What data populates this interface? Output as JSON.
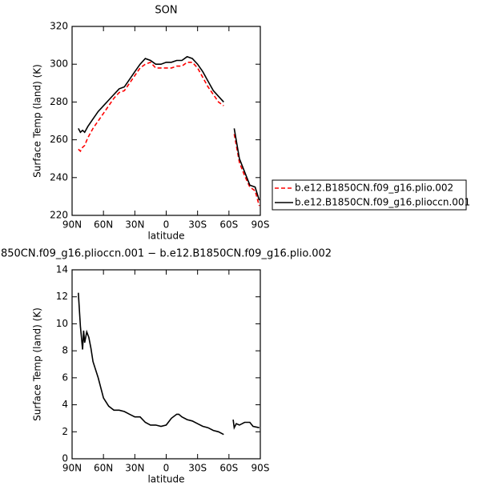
{
  "chart_data": [
    {
      "type": "line",
      "title": "SON",
      "xlabel": "latitude",
      "ylabel": "Surface Temp (land) (K)",
      "x": [
        84,
        82,
        80,
        78,
        75,
        70,
        65,
        60,
        55,
        50,
        45,
        40,
        35,
        30,
        25,
        20,
        15,
        10,
        5,
        0,
        -5,
        -10,
        -15,
        -20,
        -25,
        -30,
        -35,
        -40,
        -45,
        -50,
        -55,
        -60,
        -65,
        -70,
        -75,
        -80,
        -85,
        -89
      ],
      "series": [
        {
          "name": "b.e12.B1850CN.f09_g16.plio.002",
          "color": "#ff0000",
          "dash": true,
          "values": [
            255,
            254,
            256,
            257,
            261,
            266,
            270,
            274,
            278,
            282,
            285,
            286,
            290,
            294,
            298,
            300,
            301,
            298,
            298,
            298,
            298,
            299,
            299,
            301,
            301,
            298,
            293,
            288,
            284,
            280,
            278,
            null,
            263,
            248,
            241,
            235,
            233,
            225
          ]
        },
        {
          "name": "b.e12.B1850CN.f09_g16.plioccn.001",
          "color": "#000000",
          "dash": false,
          "values": [
            266,
            264,
            265,
            264,
            267,
            271,
            275,
            278,
            281,
            284,
            287,
            288,
            292,
            296,
            300,
            303,
            302,
            300,
            300,
            301,
            301,
            302,
            302,
            304,
            303,
            300,
            296,
            291,
            286,
            283,
            280,
            null,
            266,
            250,
            243,
            236,
            235,
            228
          ]
        }
      ],
      "xlim": [
        90,
        -90
      ],
      "xticks": [
        {
          "value": 90,
          "label": "90N"
        },
        {
          "value": 60,
          "label": "60N"
        },
        {
          "value": 30,
          "label": "30N"
        },
        0,
        {
          "value": -30,
          "label": "30S"
        },
        {
          "value": -60,
          "label": "60S"
        },
        {
          "value": -90,
          "label": "90S"
        }
      ],
      "ylim": [
        220,
        320
      ],
      "yticks": [
        220,
        240,
        260,
        280,
        300,
        320
      ],
      "legend": "right"
    },
    {
      "type": "line",
      "title": "850CN.f09_g16.plioccn.001 − b.e12.B1850CN.f09_g16.plio.002",
      "xlabel": "latitude",
      "ylabel": "Surface Temp (land) (K)",
      "x": [
        84,
        82,
        80,
        79,
        78,
        76,
        74,
        72,
        70,
        65,
        60,
        55,
        50,
        45,
        40,
        35,
        30,
        25,
        20,
        15,
        10,
        5,
        0,
        -5,
        -10,
        -12,
        -15,
        -20,
        -25,
        -30,
        -35,
        -40,
        -45,
        -50,
        -55,
        -60,
        -64,
        -65,
        -67,
        -70,
        -75,
        -80,
        -83,
        -89
      ],
      "series": [
        {
          "color": "#000000",
          "dash": false,
          "values": [
            12.3,
            9.8,
            8.1,
            9.5,
            8.6,
            9.4,
            9.0,
            8.2,
            7.2,
            6.0,
            4.5,
            3.9,
            3.6,
            3.6,
            3.5,
            3.3,
            3.1,
            3.1,
            2.7,
            2.5,
            2.5,
            2.4,
            2.5,
            3.0,
            3.3,
            3.3,
            3.1,
            2.9,
            2.8,
            2.6,
            2.4,
            2.3,
            2.1,
            2.0,
            1.8,
            null,
            2.9,
            2.3,
            2.6,
            2.5,
            2.7,
            2.7,
            2.4,
            2.3
          ]
        }
      ],
      "xlim": [
        90,
        -90
      ],
      "xticks": [
        {
          "value": 90,
          "label": "90N"
        },
        {
          "value": 60,
          "label": "60N"
        },
        {
          "value": 30,
          "label": "30N"
        },
        0,
        {
          "value": -30,
          "label": "30S"
        },
        {
          "value": -60,
          "label": "60S"
        },
        {
          "value": -90,
          "label": "90S"
        }
      ],
      "ylim": [
        0,
        14
      ],
      "yticks": [
        0,
        2,
        4,
        6,
        8,
        10,
        12,
        14
      ]
    }
  ]
}
